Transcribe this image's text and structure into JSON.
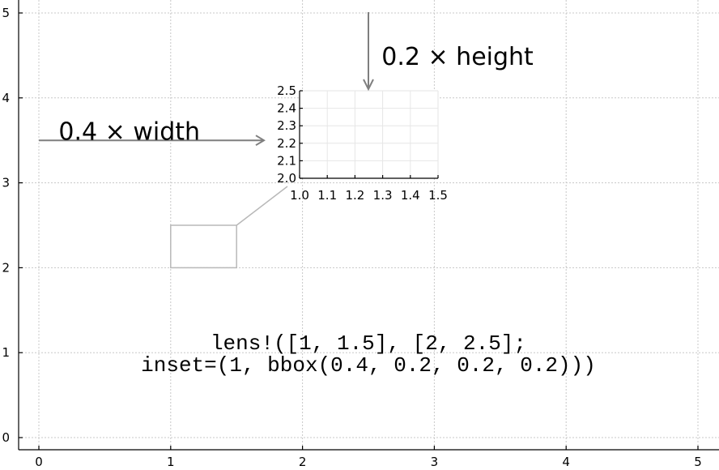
{
  "chart_data": [
    {
      "type": "scatter",
      "title": "",
      "xlabel": "",
      "ylabel": "",
      "xlim": [
        0,
        5
      ],
      "ylim": [
        0,
        5
      ],
      "xticks": [
        "0",
        "1",
        "2",
        "3",
        "4",
        "5"
      ],
      "yticks": [
        "0",
        "1",
        "2",
        "3",
        "4",
        "5"
      ],
      "grid": true,
      "series": [],
      "lens_region": {
        "x": [
          1,
          1.5
        ],
        "y": [
          2,
          2.5
        ]
      },
      "annotations": [
        {
          "text": "0.4 × width",
          "x": 0.15,
          "y": 3.6
        },
        {
          "text": "0.2 × height",
          "x": 2.6,
          "y": 4.48
        },
        {
          "text_lines": [
            "lens!([1, 1.5], [2, 2.5];",
            "inset=(1, bbox(0.4, 0.2, 0.2, 0.2)))"
          ],
          "x": 2.5,
          "y": 1.0
        }
      ],
      "arrows": [
        {
          "from": [
            0,
            3.5
          ],
          "to": [
            1.7,
            3.5
          ]
        },
        {
          "from": [
            2.5,
            5.2
          ],
          "to": [
            2.5,
            4.1
          ]
        }
      ]
    },
    {
      "type": "scatter",
      "title": "",
      "xlim": [
        1.0,
        1.5
      ],
      "ylim": [
        2.0,
        2.5
      ],
      "xticks": [
        "1.0",
        "1.1",
        "1.2",
        "1.3",
        "1.4",
        "1.5"
      ],
      "yticks": [
        "2.0",
        "2.1",
        "2.2",
        "2.3",
        "2.4",
        "2.5"
      ],
      "grid": true,
      "series": []
    }
  ]
}
